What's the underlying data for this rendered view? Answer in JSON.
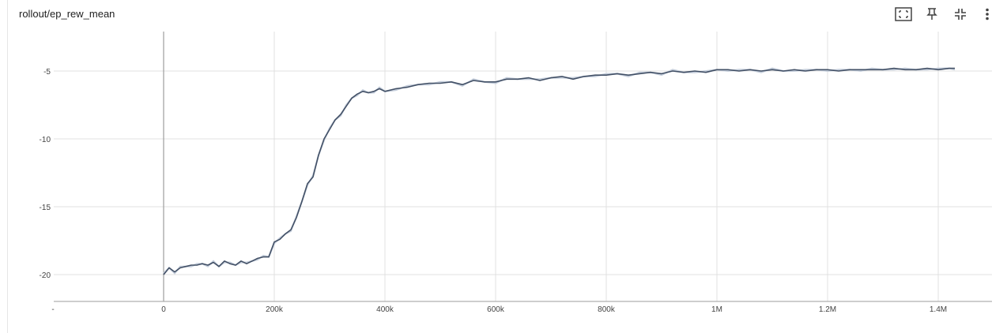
{
  "card": {
    "title": "rollout/ep_rew_mean"
  },
  "toolbar": {
    "icons": [
      "fit-domain-icon",
      "pin-icon",
      "collapse-icon",
      "more-vert-icon"
    ]
  },
  "colors": {
    "line": "#425066",
    "line_raw": "#c5cedb",
    "grid": "#e0e0e0",
    "axis": "#9e9e9e"
  },
  "chart_data": {
    "type": "line",
    "title": "rollout/ep_rew_mean",
    "xlabel": "",
    "ylabel": "",
    "xlim": [
      -200000,
      1500000
    ],
    "ylim": [
      -22,
      -2
    ],
    "x_ticks": [
      -200000,
      0,
      200000,
      400000,
      600000,
      800000,
      1000000,
      1200000,
      1400000
    ],
    "x_tick_labels": [
      "-",
      "0",
      "200k",
      "400k",
      "600k",
      "800k",
      "1M",
      "1.2M",
      "1.4M"
    ],
    "y_ticks": [
      -20,
      -15,
      -10,
      -5
    ],
    "y_tick_labels": [
      "-20",
      "-15",
      "-10",
      "-5"
    ],
    "grid": true,
    "series": [
      {
        "x": [
          0,
          10000,
          20000,
          30000,
          40000,
          50000,
          60000,
          70000,
          80000,
          90000,
          100000,
          110000,
          120000,
          130000,
          140000,
          150000,
          160000,
          170000,
          180000,
          190000,
          200000,
          210000,
          220000,
          230000,
          240000,
          250000,
          260000,
          270000,
          280000,
          290000,
          300000,
          310000,
          320000,
          330000,
          340000,
          350000,
          360000,
          370000,
          380000,
          390000,
          400000,
          420000,
          440000,
          460000,
          480000,
          500000,
          520000,
          540000,
          560000,
          580000,
          600000,
          620000,
          640000,
          660000,
          680000,
          700000,
          720000,
          740000,
          760000,
          780000,
          800000,
          820000,
          840000,
          860000,
          880000,
          900000,
          920000,
          940000,
          960000,
          980000,
          1000000,
          1020000,
          1040000,
          1060000,
          1080000,
          1100000,
          1120000,
          1140000,
          1160000,
          1180000,
          1200000,
          1220000,
          1240000,
          1260000,
          1280000,
          1300000,
          1320000,
          1340000,
          1360000,
          1380000,
          1400000,
          1420000,
          1430000
        ],
        "values": [
          -20.0,
          -19.5,
          -19.8,
          -19.5,
          -19.4,
          -19.3,
          -19.3,
          -19.2,
          -19.3,
          -19.1,
          -19.4,
          -19.0,
          -19.2,
          -19.3,
          -19.0,
          -19.2,
          -19.0,
          -18.8,
          -18.7,
          -18.7,
          -17.6,
          -17.4,
          -17.0,
          -16.7,
          -15.8,
          -14.6,
          -13.3,
          -12.8,
          -11.2,
          -10.0,
          -9.3,
          -8.6,
          -8.2,
          -7.6,
          -7.0,
          -6.7,
          -6.5,
          -6.6,
          -6.5,
          -6.3,
          -6.5,
          -6.3,
          -6.2,
          -6.0,
          -5.9,
          -5.9,
          -5.8,
          -6.0,
          -5.7,
          -5.8,
          -5.8,
          -5.6,
          -5.6,
          -5.5,
          -5.7,
          -5.5,
          -5.4,
          -5.6,
          -5.4,
          -5.3,
          -5.3,
          -5.2,
          -5.3,
          -5.2,
          -5.1,
          -5.2,
          -5.0,
          -5.1,
          -5.0,
          -5.1,
          -4.9,
          -4.9,
          -5.0,
          -4.9,
          -5.0,
          -4.9,
          -5.0,
          -4.9,
          -5.0,
          -4.9,
          -4.9,
          -5.0,
          -4.9,
          -4.9,
          -4.9,
          -4.9,
          -4.8,
          -4.9,
          -4.9,
          -4.8,
          -4.9,
          -4.8,
          -4.8
        ]
      }
    ]
  }
}
